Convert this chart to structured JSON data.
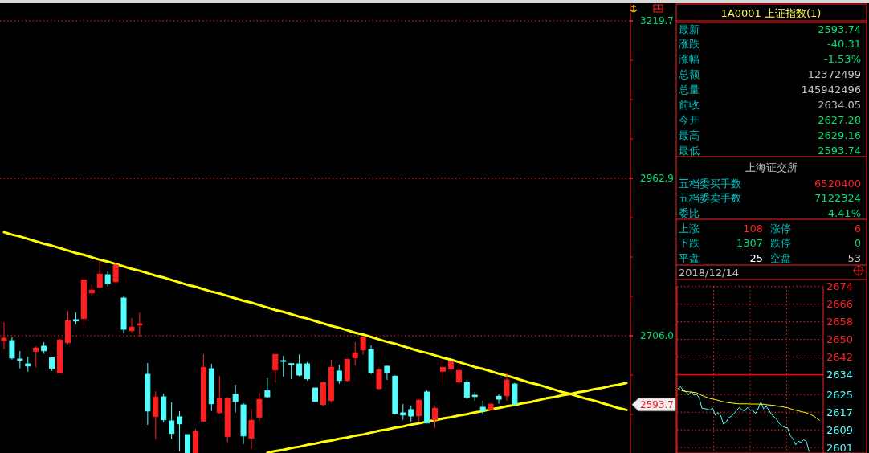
{
  "chart_data": [
    {
      "type": "candlestick",
      "categories": [
        null,
        null,
        null,
        null,
        null,
        null,
        null,
        null,
        null,
        null,
        null,
        null,
        null,
        null,
        null,
        null,
        null,
        null,
        null,
        null,
        null,
        null,
        null,
        null,
        null,
        null,
        null,
        null,
        null,
        null,
        null,
        null,
        null,
        null,
        null,
        null,
        null,
        null,
        null,
        null,
        null,
        null,
        null,
        null,
        null,
        null,
        null,
        null,
        null,
        null,
        null,
        null,
        null,
        null,
        null,
        null,
        null,
        null,
        null,
        null,
        null,
        null,
        null,
        null,
        null,
        null,
        null,
        null,
        null,
        null,
        null,
        null,
        null,
        null,
        null,
        null,
        null,
        null,
        null
      ],
      "ohlc": [
        [
          2698.1,
          2728.3,
          2683.7,
          2702.1
        ],
        [
          2698.1,
          2703.4,
          2667.1,
          2669.7
        ],
        [
          2668.0,
          2681.1,
          2652.7,
          2665.8
        ],
        [
          2660.1,
          2671.9,
          2647.4,
          2656.6
        ],
        [
          2680.7,
          2689.0,
          2654.0,
          2686.0
        ],
        [
          2689.0,
          2695.5,
          2676.3,
          2681.5
        ],
        [
          2670.2,
          2670.2,
          2648.7,
          2652.7
        ],
        [
          2645.3,
          2700.4,
          2645.3,
          2699.1
        ],
        [
          2694.6,
          2746.6,
          2692.0,
          2730.5
        ],
        [
          2732.2,
          2744.0,
          2724.7,
          2730.0
        ],
        [
          2733.9,
          2797.3,
          2722.1,
          2797.3
        ],
        [
          2775.8,
          2789.9,
          2771.9,
          2780.3
        ],
        [
          2785.0,
          2828.8,
          2783.3,
          2806.5
        ],
        [
          2805.6,
          2810.8,
          2786.3,
          2791.2
        ],
        [
          2794.2,
          2825.2,
          2791.6,
          2821.3
        ],
        [
          2767.6,
          2771.5,
          2709.9,
          2716.5
        ],
        [
          2714.3,
          2734.8,
          2711.6,
          2720.0
        ],
        [
          2723.4,
          2744.0,
          2704.3,
          2725.7
        ],
        [
          2643.1,
          2661.5,
          2560.6,
          2583.2
        ],
        [
          2574.1,
          2615.6,
          2537.4,
          2606.0
        ],
        [
          2606.4,
          2611.7,
          2564.9,
          2568.8
        ],
        [
          2567.1,
          2597.3,
          2537.4,
          2546.6
        ],
        [
          2573.7,
          2582.8,
          2517.7,
          2562.3
        ],
        [
          2544.8,
          2544.8,
          2515.0,
          2515.0
        ],
        [
          2515.0,
          2554.0,
          2515.0,
          2549.7
        ],
        [
          2566.7,
          2675.9,
          2566.7,
          2654.5
        ],
        [
          2652.3,
          2660.1,
          2583.2,
          2595.0
        ],
        [
          2580.6,
          2640.5,
          2578.5,
          2603.4
        ],
        [
          2541.8,
          2606.0,
          2532.2,
          2603.4
        ],
        [
          2610.4,
          2626.1,
          2580.6,
          2598.9
        ],
        [
          2593.3,
          2596.0,
          2529.5,
          2542.6
        ],
        [
          2539.1,
          2586.8,
          2521.7,
          2568.0
        ],
        [
          2573.3,
          2613.0,
          2567.5,
          2602.1
        ],
        [
          2616.5,
          2636.6,
          2604.2,
          2606.4
        ],
        [
          2650.1,
          2675.5,
          2629.1,
          2675.5
        ],
        [
          2665.4,
          2673.2,
          2639.2,
          2664.1
        ],
        [
          2660.5,
          2661.5,
          2635.3,
          2659.2
        ],
        [
          2660.1,
          2675.5,
          2639.6,
          2641.8
        ],
        [
          2660.1,
          2662.8,
          2633.0,
          2635.7
        ],
        [
          2620.8,
          2620.8,
          2598.9,
          2598.9
        ],
        [
          2593.7,
          2630.9,
          2590.9,
          2629.6
        ],
        [
          2600.3,
          2666.7,
          2597.6,
          2654.5
        ],
        [
          2648.4,
          2658.8,
          2627.6,
          2633.0
        ],
        [
          2633.0,
          2667.6,
          2631.3,
          2667.6
        ],
        [
          2670.2,
          2695.5,
          2657.5,
          2678.1
        ],
        [
          2682.8,
          2703.4,
          2674.9,
          2703.4
        ],
        [
          2683.7,
          2690.3,
          2643.5,
          2646.1
        ],
        [
          2619.9,
          2653.2,
          2618.2,
          2650.6
        ],
        [
          2656.2,
          2657.1,
          2633.9,
          2646.1
        ],
        [
          2640.1,
          2641.4,
          2578.0,
          2579.3
        ],
        [
          2580.2,
          2594.6,
          2568.8,
          2576.7
        ],
        [
          2585.5,
          2592.0,
          2565.8,
          2575.0
        ],
        [
          2575.4,
          2602.1,
          2564.5,
          2600.8
        ],
        [
          2614.3,
          2616.9,
          2563.6,
          2563.6
        ],
        [
          2568.8,
          2590.7,
          2555.7,
          2587.7
        ],
        [
          2648.0,
          2665.4,
          2629.1,
          2654.5
        ],
        [
          2651.9,
          2664.1,
          2644.8,
          2664.1
        ],
        [
          2630.4,
          2659.7,
          2626.3,
          2649.3
        ],
        [
          2630.0,
          2633.9,
          2602.9,
          2605.5
        ],
        [
          2609.0,
          2614.3,
          2599.9,
          2606.8
        ],
        [
          2589.4,
          2599.9,
          2576.7,
          2583.2
        ],
        [
          2585.5,
          2596.0,
          2585.5,
          2594.4
        ],
        [
          2607.3,
          2610.4,
          2595.0,
          2602.5
        ],
        [
          2608.1,
          2645.7,
          2599.9,
          2633.9
        ],
        [
          2627.28,
          2629.16,
          2593.74,
          2593.74
        ],
        null,
        null,
        null,
        null,
        null,
        null,
        null,
        null,
        null,
        null,
        null,
        null,
        null,
        null
      ],
      "ylim": [
        2514.7,
        3247.2
      ],
      "yticks": [
        {
          "value": 2706,
          "label": "2706.0"
        },
        2962.9,
        3219.7
      ],
      "grid": "y",
      "tick_labels": "y",
      "series": [
        {
          "type": "line",
          "values": [
            2875,
            2871,
            2868,
            2864,
            2860,
            2856,
            2853,
            2849,
            2845,
            2841,
            2838,
            2834,
            2830,
            2827,
            2823,
            2819,
            2815,
            2812,
            2808,
            2804,
            2801,
            2797,
            2793,
            2789,
            2786,
            2782,
            2778,
            2775,
            2771,
            2767,
            2763,
            2760,
            2756,
            2752,
            2748,
            2745,
            2741,
            2737,
            2734,
            2730,
            2726,
            2722,
            2719,
            2715,
            2711,
            2708,
            2704,
            2700,
            2696,
            2693,
            2689,
            2685,
            2681,
            2678,
            2674,
            2670,
            2667,
            2663,
            2659,
            2655,
            2652,
            2648,
            2644,
            2641,
            2637,
            2633,
            2629,
            2626,
            2622,
            2618,
            2614,
            2611,
            2607,
            2603,
            2600,
            2596,
            2592,
            2588,
            2585
          ],
          "color": "#ffff00"
        },
        {
          "type": "line",
          "values": [
            null,
            null,
            null,
            null,
            null,
            null,
            null,
            null,
            null,
            null,
            null,
            null,
            null,
            null,
            null,
            null,
            null,
            null,
            null,
            null,
            null,
            null,
            null,
            null,
            null,
            null,
            null,
            null,
            null,
            null,
            null,
            null,
            null,
            2515,
            2518,
            2520,
            2523,
            2525,
            2528,
            2530,
            2533,
            2535,
            2538,
            2540,
            2543,
            2545,
            2548,
            2551,
            2553,
            2556,
            2558,
            2561,
            2563,
            2566,
            2568,
            2571,
            2573,
            2576,
            2578,
            2581,
            2583,
            2586,
            2588,
            2591,
            2593,
            2596,
            2598,
            2601,
            2604,
            2606,
            2609,
            2611,
            2614,
            2616,
            2619,
            2621,
            2624,
            2626,
            2629
          ],
          "color": "#ffff00"
        }
      ],
      "annotations": [
        "2593.7"
      ]
    },
    {
      "type": "other",
      "title": "1A0001 上证指数(1)",
      "annotations": [
        "最新",
        "2593.74",
        "涨跌",
        "-40.31",
        "涨幅",
        "-1.53%",
        "总额",
        "12372499",
        "总量",
        "145942496",
        "前收",
        "2634.05",
        "今开",
        "2627.28",
        "最高",
        "2629.16",
        "最低",
        "2593.74",
        "上海证交所",
        "五档委买手数",
        "6520400",
        "五档委卖手数",
        "7122324",
        "委比",
        "-4.41%",
        "上涨",
        "108",
        "涨停",
        "6",
        "下跌",
        "1307",
        "跌停",
        "0",
        "平盘",
        "25",
        "空盘",
        "53"
      ]
    },
    {
      "type": "line",
      "title": "2018/12/14",
      "categories": [
        null,
        null,
        null,
        null,
        null,
        null,
        null,
        null,
        null,
        null,
        null,
        null,
        null,
        null,
        null,
        null,
        null,
        null,
        null,
        null,
        null,
        null,
        null,
        null,
        null,
        null,
        null,
        null,
        null,
        null,
        null,
        null,
        null,
        null,
        null,
        null,
        null,
        null,
        null,
        null,
        null,
        null,
        null,
        null,
        null,
        null,
        null,
        null,
        null,
        null,
        null,
        null,
        null,
        null
      ],
      "ylim": [
        2598.5,
        2674
      ],
      "yticks": [
        2601,
        2609,
        2617,
        2625,
        2634,
        2642,
        2650,
        2658,
        2666,
        2674
      ],
      "grid": true,
      "tick_labels": "y",
      "ref_lines": [
        {
          "axis": "y",
          "value": 2634.05,
          "color": "#ff0000"
        }
      ],
      "series": [
        {
          "color": "#54ffff",
          "values": [
            2627.6,
            2628.6,
            2626.9,
            2626.4,
            2624.9,
            2626.4,
            2624.7,
            2625.2,
            2623.5,
            2618.8,
            2618.6,
            2618.4,
            2618.0,
            2618.8,
            2615.6,
            2616.8,
            2615.6,
            2611.6,
            2612.5,
            2614.5,
            2615.2,
            2616.4,
            2617.9,
            2619.2,
            2618.0,
            2617.6,
            2619.2,
            2617.9,
            2617.9,
            2616.4,
            2618.6,
            2621.6,
            2618.6,
            2619.6,
            2618.0,
            2615.9,
            2614.9,
            2613.5,
            2611.7,
            2610.7,
            2610.1,
            2609.9,
            2606.4,
            2605.0,
            2602.2,
            2603.8,
            2603.4,
            2604.5,
            2603.8,
            2599.1,
            null,
            null,
            null,
            null
          ]
        },
        {
          "color": "#ffff00",
          "values": [
            2627.8,
            2627.1,
            2626.6,
            2626.4,
            2626.3,
            2626.1,
            2626.0,
            2625.8,
            2625.2,
            2624.6,
            2624.1,
            2623.7,
            2623.2,
            2623.0,
            2622.7,
            2622.4,
            2622.0,
            2621.8,
            2621.5,
            2621.3,
            2621.2,
            2621.0,
            2620.9,
            2620.8,
            2620.8,
            2620.8,
            2620.8,
            2620.7,
            2620.7,
            2620.7,
            2620.7,
            2620.6,
            2620.6,
            2620.4,
            2620.3,
            2620.2,
            2620.1,
            2619.8,
            2619.6,
            2619.5,
            2619.2,
            2619.0,
            2618.6,
            2618.2,
            2617.9,
            2617.6,
            2617.3,
            2617.0,
            2616.7,
            2616.2,
            2615.7,
            2615.0,
            2614.1,
            2613.3
          ]
        }
      ]
    }
  ]
}
